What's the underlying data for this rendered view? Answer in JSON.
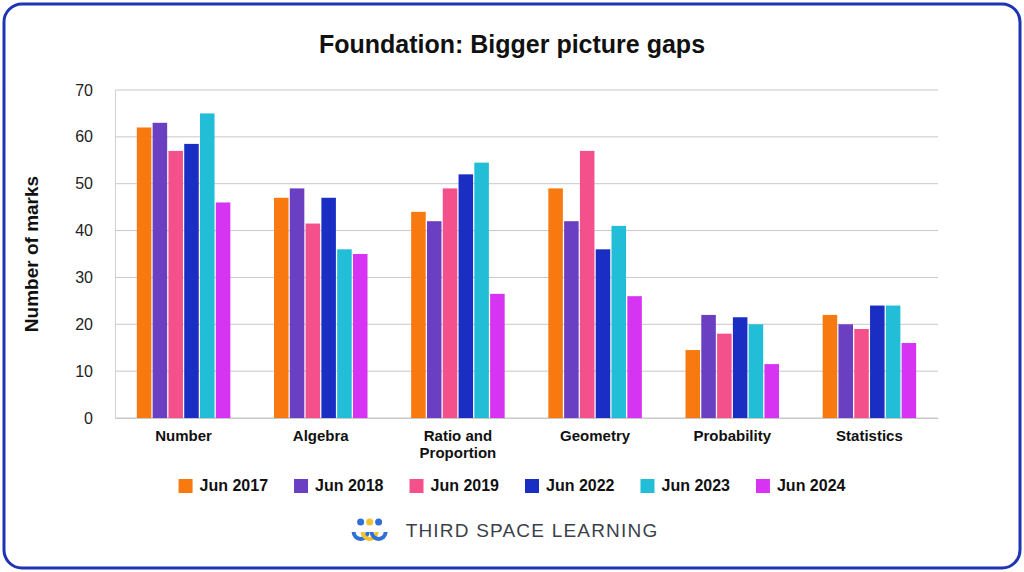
{
  "chart_data": {
    "type": "bar",
    "title": "Foundation: Bigger picture gaps",
    "y_label": "Number of marks",
    "categories": [
      "Number",
      "Algebra",
      "Ratio and Proportion",
      "Geometry",
      "Probability",
      "Statistics"
    ],
    "series": [
      {
        "name": "Jun 2017",
        "color": "#f7790f",
        "values": [
          62,
          47,
          44,
          49,
          14.5,
          22
        ]
      },
      {
        "name": "Jun 2018",
        "color": "#6a3fc1",
        "values": [
          63,
          49,
          42,
          42,
          22,
          20
        ]
      },
      {
        "name": "Jun 2019",
        "color": "#f4508c",
        "values": [
          57,
          41.5,
          49,
          57,
          18,
          19
        ]
      },
      {
        "name": "Jun 2022",
        "color": "#1a2ec4",
        "values": [
          58.5,
          47,
          52,
          36,
          21.5,
          24
        ]
      },
      {
        "name": "Jun 2023",
        "color": "#22bdd6",
        "values": [
          65,
          36,
          54.5,
          41,
          20,
          24
        ]
      },
      {
        "name": "Jun 2024",
        "color": "#d633f2",
        "values": [
          46,
          35,
          26.5,
          26,
          11.5,
          16
        ]
      }
    ],
    "ylim": [
      0,
      70
    ],
    "yticks": [
      0,
      10,
      20,
      30,
      40,
      50,
      60,
      70
    ],
    "grid": true,
    "legend": "bottom",
    "annotations": [
      "THIRD SPACE LEARNING"
    ]
  }
}
